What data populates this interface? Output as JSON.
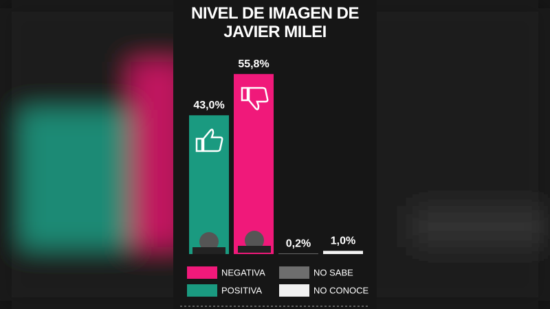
{
  "chart_data": {
    "type": "bar",
    "title": "NIVEL DE IMAGEN DE JAVIER MILEI",
    "series": [
      {
        "name": "POSITIVA",
        "color": "#1a9a80",
        "values": [
          43.0
        ],
        "value_labels": [
          "43,0%"
        ]
      },
      {
        "name": "NEGATIVA",
        "color": "#f0197a",
        "values": [
          55.8
        ],
        "value_labels": [
          "55,8%"
        ]
      },
      {
        "name": "NO SABE",
        "color": "#6e6e6e",
        "values": [
          0.2
        ],
        "value_labels": [
          "0,2%"
        ]
      },
      {
        "name": "NO CONOCE",
        "color": "#f2f2f2",
        "values": [
          1.0
        ],
        "value_labels": [
          "1,0%"
        ]
      }
    ]
  }
}
